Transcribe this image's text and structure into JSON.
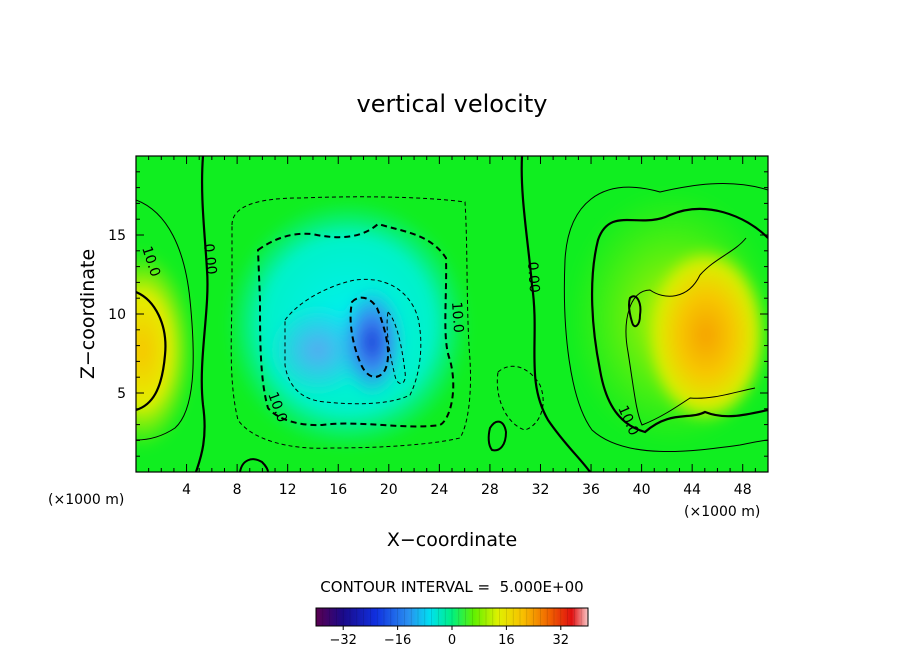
{
  "chart_data": {
    "type": "heatmap",
    "title": "vertical velocity",
    "xlabel": "X−coordinate",
    "ylabel": "Z−coordinate",
    "x_unit": "(×1000 m)",
    "y_unit": "(×1000 m)",
    "xlim": [
      0,
      50
    ],
    "ylim": [
      0,
      20
    ],
    "x_ticks": [
      4,
      8,
      12,
      16,
      20,
      24,
      28,
      32,
      36,
      40,
      44,
      48
    ],
    "y_ticks": [
      5,
      10,
      15
    ],
    "contour_interval_text": "CONTOUR INTERVAL =  5.000E+00",
    "contour_interval": 5.0,
    "contour_labels": [
      "10.0",
      "0.00",
      "10.0",
      "10.0",
      "0.00",
      "10.0"
    ],
    "colorbar": {
      "range": [
        -40,
        40
      ],
      "ticks": [
        "−32",
        "−16",
        "0",
        "16",
        "32"
      ],
      "tick_values": [
        -32,
        -16,
        0,
        16,
        32
      ]
    },
    "features": [
      {
        "x": 18.5,
        "z": 8.5,
        "value": -28
      },
      {
        "x": 14,
        "z": 7.5,
        "value": -15
      },
      {
        "x": 46,
        "z": 7.5,
        "value": 22
      },
      {
        "x": 1,
        "z": 7.5,
        "value": 14
      },
      {
        "x": 30,
        "z": 10,
        "value": 0
      }
    ]
  }
}
